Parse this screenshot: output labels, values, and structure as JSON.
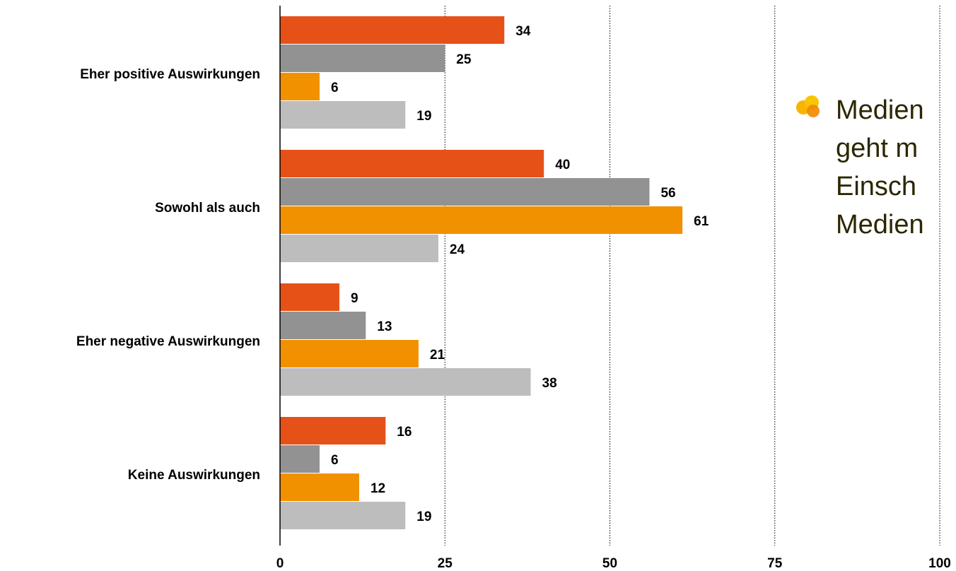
{
  "chart_data": {
    "type": "bar",
    "orientation": "horizontal",
    "categories": [
      "Eher positive Auswirkungen",
      "Sowohl als auch",
      "Eher negative Auswirkungen",
      "Keine Auswirkungen"
    ],
    "series": [
      {
        "color": "#e65118",
        "values": [
          34,
          40,
          9,
          16
        ]
      },
      {
        "color": "#929292",
        "values": [
          25,
          56,
          13,
          6
        ]
      },
      {
        "color": "#f29100",
        "values": [
          6,
          61,
          21,
          12
        ]
      },
      {
        "color": "#bdbdbd",
        "values": [
          19,
          24,
          38,
          19
        ]
      }
    ],
    "xlim": [
      0,
      100
    ],
    "xticks": [
      0,
      25,
      50,
      75,
      100
    ],
    "grid": "vertical dotted"
  },
  "side_note": {
    "bullet_icon": "orange-dots-bullet-icon",
    "lines": [
      "Medien",
      "geht m",
      "Einsch",
      "Medien"
    ]
  }
}
